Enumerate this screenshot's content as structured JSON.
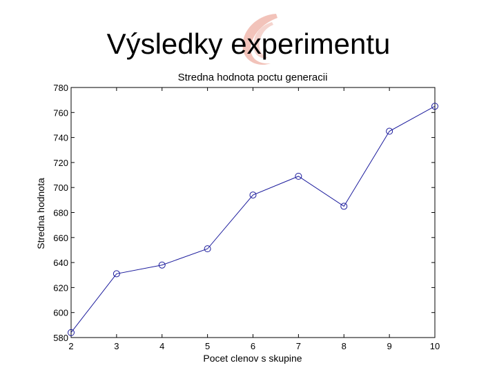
{
  "slide": {
    "title": "Výsledky experimentu"
  },
  "colors": {
    "series": "#1a1a9c",
    "axis": "#000000",
    "logo": "#d9533a"
  },
  "chart_data": {
    "type": "line",
    "title": "Stredna hodnota poctu generacii",
    "xlabel": "Pocet clenov s skupine",
    "ylabel": "Stredna hodnota",
    "x": [
      2,
      3,
      4,
      5,
      6,
      7,
      8,
      9,
      10
    ],
    "xlim": [
      2,
      10
    ],
    "ylim": [
      580,
      780
    ],
    "xticks": [
      2,
      3,
      4,
      5,
      6,
      7,
      8,
      9,
      10
    ],
    "yticks": [
      580,
      600,
      620,
      640,
      660,
      680,
      700,
      720,
      740,
      760,
      780
    ],
    "grid": false,
    "series": [
      {
        "values": [
          584,
          631,
          638,
          651,
          694,
          709,
          685,
          745,
          765
        ],
        "marker": "circle"
      }
    ]
  }
}
